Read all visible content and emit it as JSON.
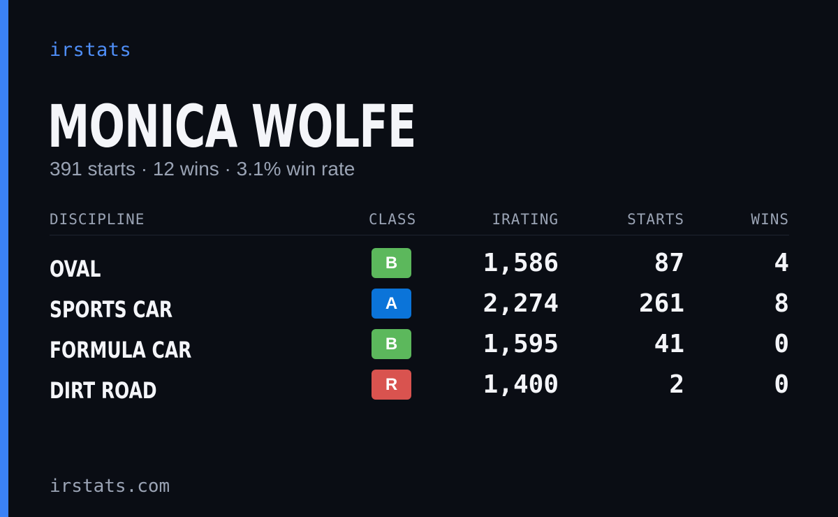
{
  "brand": "irstats",
  "player": {
    "name": "MONICA WOLFE",
    "summary": "391 starts · 12 wins · 3.1% win rate"
  },
  "colors": {
    "accent": "#3b82f6",
    "background": "#0a0d14",
    "class_b": "#5cb85c",
    "class_a": "#0b74d9",
    "class_r": "#d9534f"
  },
  "table": {
    "headers": {
      "discipline": "DISCIPLINE",
      "class": "CLASS",
      "irating": "IRATING",
      "starts": "STARTS",
      "wins": "WINS"
    },
    "rows": [
      {
        "discipline": "OVAL",
        "class": "B",
        "class_color": "#5cb85c",
        "irating": "1,586",
        "starts": "87",
        "wins": "4"
      },
      {
        "discipline": "SPORTS CAR",
        "class": "A",
        "class_color": "#0b74d9",
        "irating": "2,274",
        "starts": "261",
        "wins": "8"
      },
      {
        "discipline": "FORMULA CAR",
        "class": "B",
        "class_color": "#5cb85c",
        "irating": "1,595",
        "starts": "41",
        "wins": "0"
      },
      {
        "discipline": "DIRT ROAD",
        "class": "R",
        "class_color": "#d9534f",
        "irating": "1,400",
        "starts": "2",
        "wins": "0"
      }
    ]
  },
  "footer": {
    "domain": "irstats.com"
  }
}
